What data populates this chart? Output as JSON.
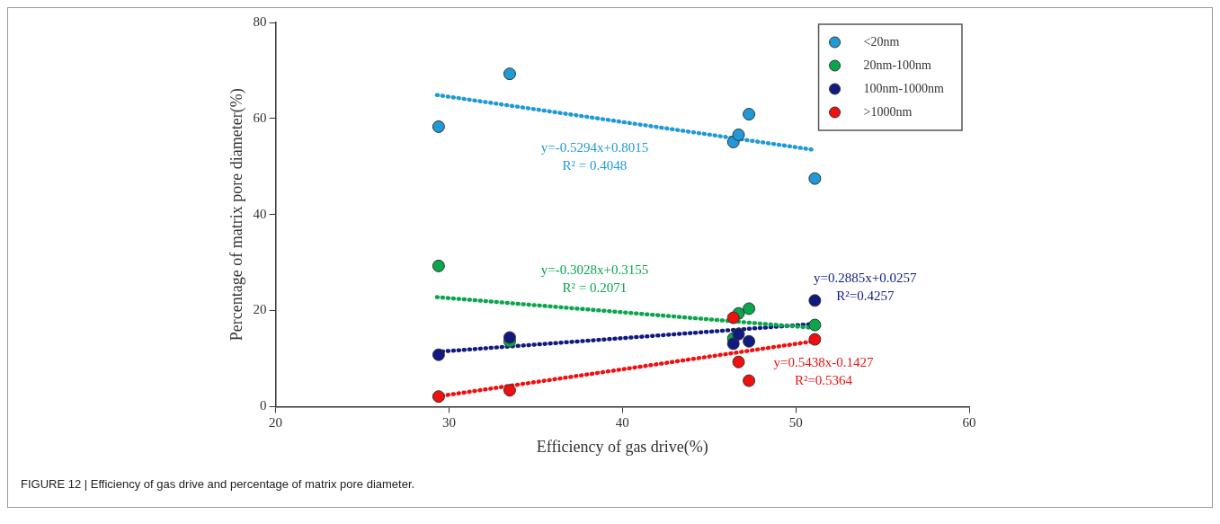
{
  "chart_data": {
    "type": "scatter",
    "xlabel": "Efficiency of gas drive(%)",
    "ylabel": "Percentage of matrix pore diameter(%)",
    "xlim": [
      20,
      60
    ],
    "xticks": [
      20,
      30,
      40,
      50,
      60
    ],
    "ylim": [
      0,
      80
    ],
    "yticks": [
      0,
      20,
      40,
      60,
      80
    ],
    "grid": false,
    "legend": "top right",
    "marker": "circle",
    "series": [
      {
        "name": "<20nm",
        "color": "#1f9ad6",
        "x": [
          29.4,
          33.5,
          46.4,
          46.7,
          47.3,
          51.1
        ],
        "values": [
          58.3,
          69.3,
          55.1,
          56.6,
          60.9,
          47.5
        ]
      },
      {
        "name": "20nm-100nm",
        "color": "#0aa64b",
        "x": [
          29.4,
          33.5,
          46.4,
          46.7,
          47.3,
          51.1
        ],
        "values": [
          29.3,
          13.6,
          14.2,
          19.4,
          20.4,
          17.0
        ]
      },
      {
        "name": "100nm-1000nm",
        "color": "#101a80",
        "x": [
          29.4,
          33.5,
          46.4,
          46.7,
          47.3,
          51.1
        ],
        "values": [
          10.8,
          14.4,
          13.1,
          15.1,
          13.6,
          22.1
        ]
      },
      {
        "name": ">1000nm",
        "color": "#f01010",
        "x": [
          29.4,
          33.5,
          46.4,
          46.7,
          47.3,
          51.1
        ],
        "values": [
          2.1,
          3.4,
          18.5,
          9.3,
          5.4,
          14.0
        ]
      },
      {
        "type": "line",
        "color": "#1f9ad6",
        "x": [
          29.3,
          51.0
        ],
        "values": [
          64.9,
          53.5
        ],
        "line_style": "dotted",
        "marker": "none"
      },
      {
        "type": "line",
        "color": "#0aa64b",
        "x": [
          29.3,
          51.0
        ],
        "values": [
          22.8,
          16.4
        ],
        "line_style": "dotted",
        "marker": "none"
      },
      {
        "type": "line",
        "color": "#101a80",
        "x": [
          29.3,
          51.0
        ],
        "values": [
          11.4,
          17.2
        ],
        "line_style": "dotted",
        "marker": "none"
      },
      {
        "type": "line",
        "color": "#f01010",
        "x": [
          29.3,
          51.0
        ],
        "values": [
          2.1,
          13.6
        ],
        "line_style": "dotted",
        "marker": "none"
      }
    ],
    "annotations": [
      "y=-0.5294x+0.8015\nR² = 0.4048",
      "y=-0.3028x+0.3155\nR² = 0.2071",
      "y=0.2885x+0.0257\nR²=0.4257",
      "y=0.5438x-0.1427\nR²=0.5364",
      "FIGURE 12 | Efficiency of gas drive and percentage of matrix pore diameter."
    ]
  }
}
